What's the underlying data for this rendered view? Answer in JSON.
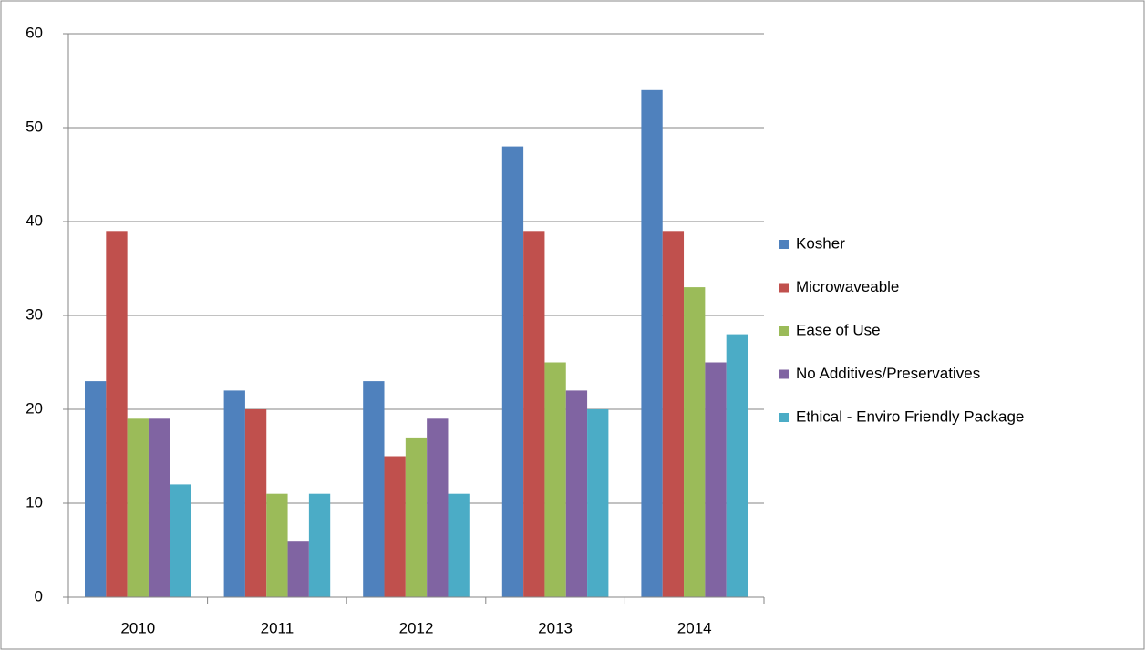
{
  "chart_data": {
    "type": "bar",
    "categories": [
      "2010",
      "2011",
      "2012",
      "2013",
      "2014"
    ],
    "series": [
      {
        "name": "Kosher",
        "color": "#4f81bd",
        "values": [
          23,
          22,
          23,
          48,
          54
        ]
      },
      {
        "name": "Microwaveable",
        "color": "#c0504d",
        "values": [
          39,
          20,
          15,
          39,
          39
        ]
      },
      {
        "name": "Ease of Use",
        "color": "#9bbb59",
        "values": [
          19,
          11,
          17,
          25,
          33
        ]
      },
      {
        "name": "No Additives/Preservatives",
        "color": "#8064a2",
        "values": [
          19,
          6,
          19,
          22,
          25
        ]
      },
      {
        "name": "Ethical - Enviro Friendly Package",
        "color": "#4bacc6",
        "values": [
          12,
          11,
          11,
          20,
          28
        ]
      }
    ],
    "ylim": [
      0,
      60
    ],
    "yticks": [
      0,
      10,
      20,
      30,
      40,
      50,
      60
    ],
    "grid": true,
    "legend": "right"
  }
}
